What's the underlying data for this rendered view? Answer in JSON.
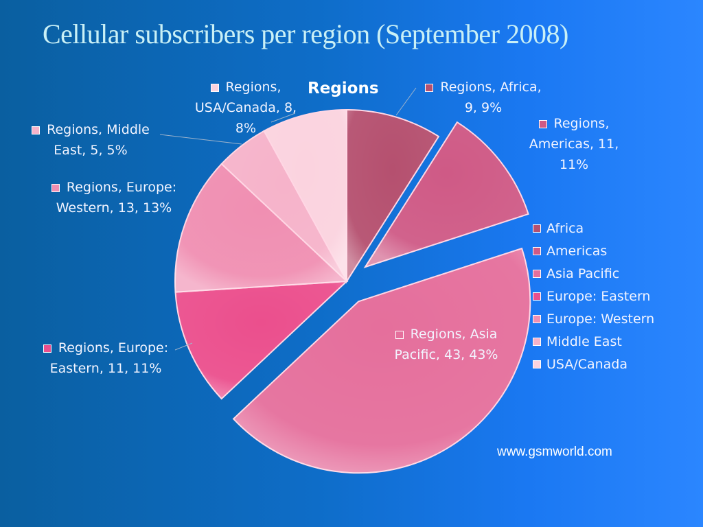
{
  "slide": {
    "title": "Cellular subscribers per region (September 2008)",
    "footer": "www.gsmworld.com"
  },
  "chart_data": {
    "type": "pie",
    "title": "Regions",
    "series_name": "Regions",
    "categories": [
      "Africa",
      "Americas",
      "Asia Pacific",
      "Europe: Eastern",
      "Europe: Western",
      "Middle East",
      "USA/Canada"
    ],
    "values": [
      9,
      11,
      43,
      11,
      13,
      5,
      8
    ],
    "percents": [
      9,
      11,
      43,
      11,
      13,
      5,
      8
    ],
    "colors": [
      "#b5506f",
      "#cf5a86",
      "#e56f9c",
      "#eb4f8d",
      "#f08fb2",
      "#f6b3ca",
      "#fbd3df"
    ],
    "exploded": [
      "Americas",
      "Asia Pacific"
    ],
    "legend": "right",
    "data_labels": {
      "africa_a": "Regions, Africa,",
      "africa_b": "9, 9%",
      "americas_a": "Regions,",
      "americas_b": "Americas, 11,",
      "americas_c": "11%",
      "asia_a": "Regions, Asia",
      "asia_b": "Pacific, 43, 43%",
      "eeast_a": "Regions, Europe:",
      "eeast_b": "Eastern, 11, 11%",
      "ewest_a": "Regions, Europe:",
      "ewest_b": "Western, 13, 13%",
      "mid_a": "Regions, Middle",
      "mid_b": "East, 5, 5%",
      "usa_a": "Regions,",
      "usa_b": "USA/Canada, 8,",
      "usa_c": "8%"
    }
  }
}
